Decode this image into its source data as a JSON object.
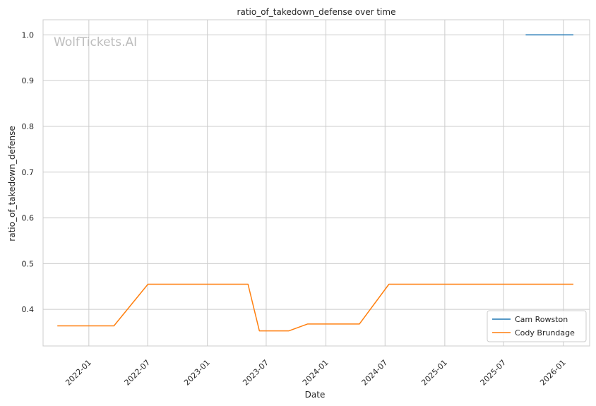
{
  "chart_data": {
    "type": "line",
    "title": "ratio_of_takedown_defense over time",
    "xlabel": "Date",
    "ylabel": "ratio_of_takedown_defense",
    "watermark": "WolfTickets.AI",
    "x_is_date": true,
    "xlim": [
      "2021-08-13",
      "2026-03-23"
    ],
    "ylim": [
      0.32,
      1.033
    ],
    "x_ticks": [
      "2022-01",
      "2022-07",
      "2023-01",
      "2023-07",
      "2024-01",
      "2024-07",
      "2025-01",
      "2025-07",
      "2026-01"
    ],
    "y_ticks": [
      0.4,
      0.5,
      0.6,
      0.7,
      0.8,
      0.9,
      1.0
    ],
    "y_tick_labels": [
      "0.4",
      "0.5",
      "0.6",
      "0.7",
      "0.8",
      "0.9",
      "1.0"
    ],
    "grid": true,
    "legend_position": "lower-right",
    "series": [
      {
        "name": "Cam Rowston",
        "color": "#1f77b4",
        "x": [
          "2025-09-07",
          "2026-02-01"
        ],
        "y": [
          1.0,
          1.0
        ]
      },
      {
        "name": "Cody Brundage",
        "color": "#ff7f0e",
        "x": [
          "2021-09-26",
          "2022-03-19",
          "2022-07-02",
          "2023-05-06",
          "2023-06-10",
          "2023-09-09",
          "2023-11-05",
          "2024-04-13",
          "2024-07-13",
          "2026-02-01"
        ],
        "y": [
          0.364,
          0.364,
          0.455,
          0.455,
          0.353,
          0.353,
          0.368,
          0.368,
          0.455,
          0.455
        ]
      }
    ]
  }
}
